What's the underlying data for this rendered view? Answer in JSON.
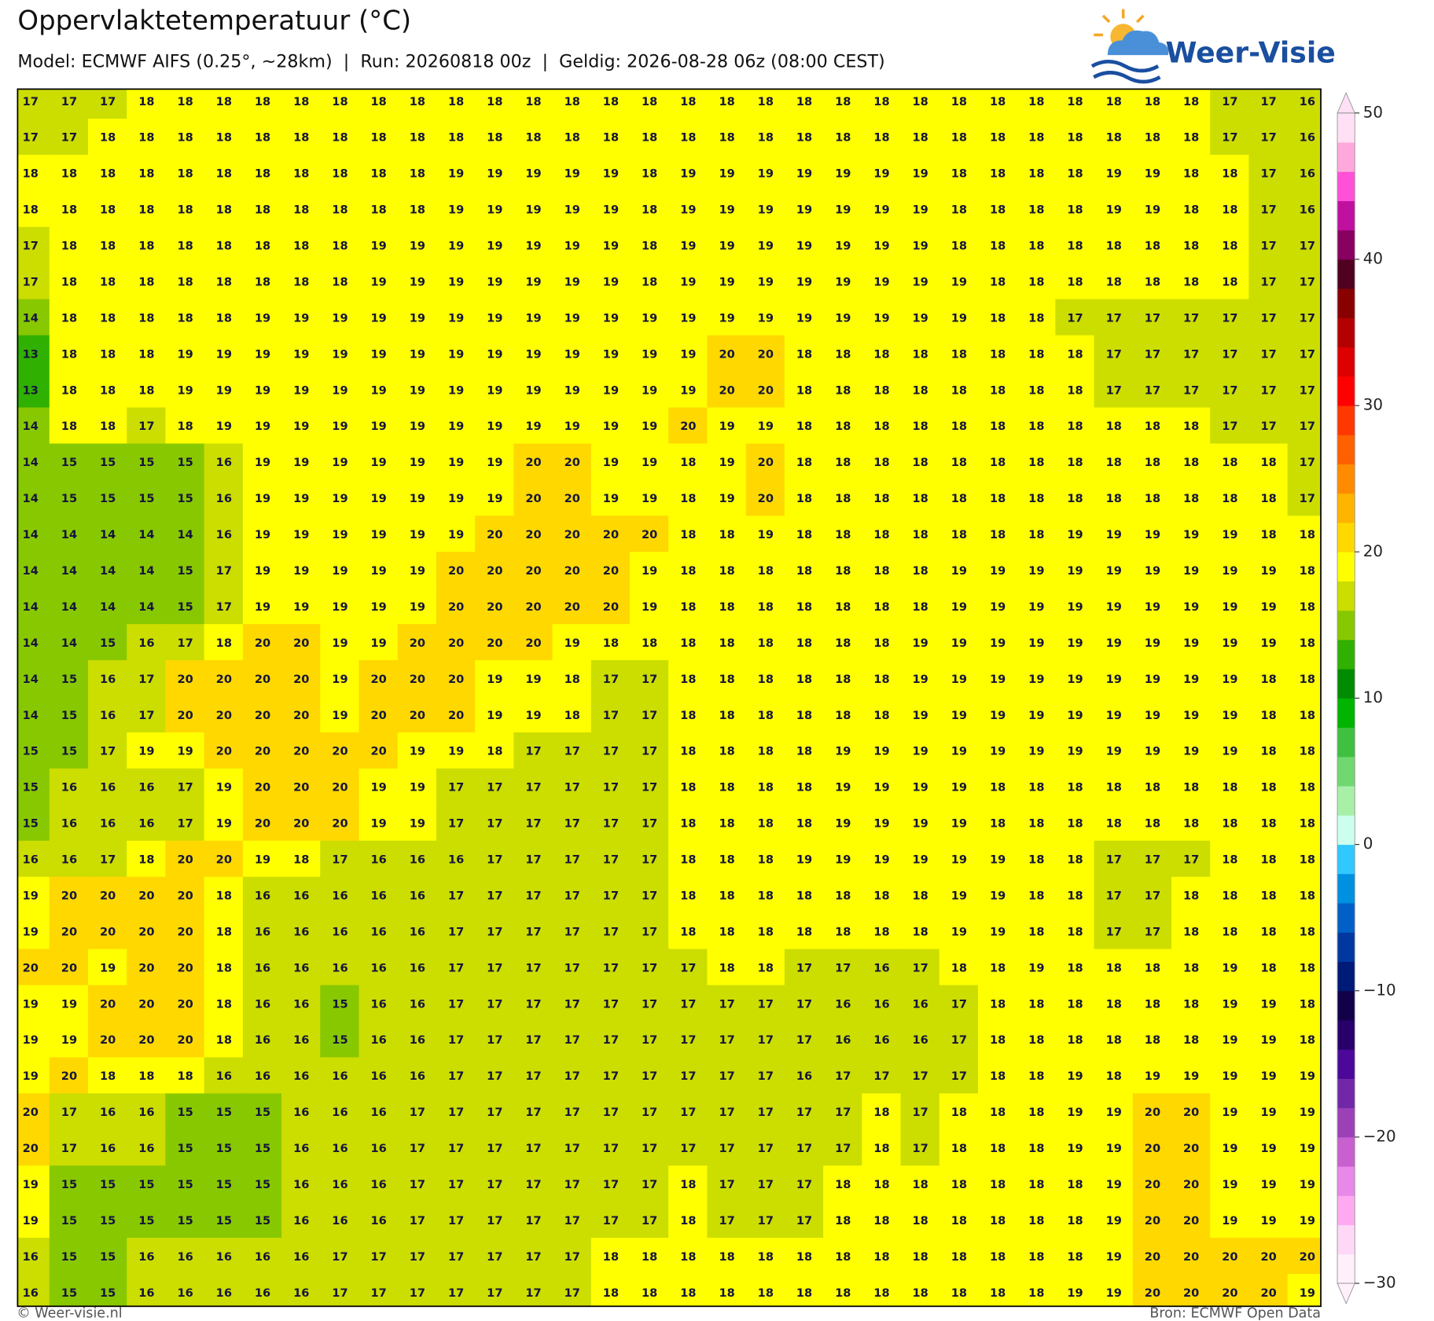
{
  "header": {
    "title": "Oppervlaktetemperatuur (°C)",
    "subtitle": "Model: ECMWF AIFS (0.25°, ~28km)  |  Run: 20260818 00z  |  Geldig: 2026-08-28 06z (08:00 CEST)"
  },
  "logo": {
    "text": "Weer-Visie"
  },
  "grid": {
    "values": [
      [
        17,
        17,
        17,
        18,
        18,
        18,
        18,
        18,
        18,
        18,
        18,
        18,
        18,
        18,
        18,
        18,
        18,
        18,
        18,
        18,
        18,
        18,
        18,
        18,
        18,
        18,
        18,
        18,
        18,
        18,
        18,
        17,
        17,
        16
      ],
      [
        17,
        17,
        18,
        18,
        18,
        18,
        18,
        18,
        18,
        18,
        18,
        18,
        18,
        18,
        18,
        18,
        18,
        18,
        18,
        18,
        18,
        18,
        18,
        18,
        18,
        18,
        18,
        18,
        18,
        18,
        18,
        17,
        17,
        16
      ],
      [
        18,
        18,
        18,
        18,
        18,
        18,
        18,
        18,
        18,
        18,
        18,
        19,
        19,
        19,
        19,
        19,
        18,
        19,
        19,
        19,
        19,
        19,
        19,
        19,
        18,
        18,
        18,
        18,
        19,
        19,
        18,
        18,
        17,
        16
      ],
      [
        18,
        18,
        18,
        18,
        18,
        18,
        18,
        18,
        18,
        18,
        18,
        19,
        19,
        19,
        19,
        19,
        18,
        19,
        19,
        19,
        19,
        19,
        19,
        19,
        18,
        18,
        18,
        18,
        19,
        19,
        18,
        18,
        17,
        16
      ],
      [
        17,
        18,
        18,
        18,
        18,
        18,
        18,
        18,
        18,
        19,
        19,
        19,
        19,
        19,
        19,
        19,
        18,
        19,
        19,
        19,
        19,
        19,
        19,
        19,
        18,
        18,
        18,
        18,
        18,
        18,
        18,
        18,
        17,
        17
      ],
      [
        17,
        18,
        18,
        18,
        18,
        18,
        18,
        18,
        18,
        19,
        19,
        19,
        19,
        19,
        19,
        19,
        18,
        19,
        19,
        19,
        19,
        19,
        19,
        19,
        19,
        18,
        18,
        18,
        18,
        18,
        18,
        18,
        17,
        17
      ],
      [
        14,
        18,
        18,
        18,
        18,
        18,
        19,
        19,
        19,
        19,
        19,
        19,
        19,
        19,
        19,
        19,
        19,
        19,
        19,
        19,
        19,
        19,
        19,
        19,
        19,
        18,
        18,
        17,
        17,
        17,
        17,
        17,
        17,
        17
      ],
      [
        13,
        18,
        18,
        18,
        19,
        19,
        19,
        19,
        19,
        19,
        19,
        19,
        19,
        19,
        19,
        19,
        19,
        19,
        20,
        20,
        18,
        18,
        18,
        18,
        18,
        18,
        18,
        18,
        17,
        17,
        17,
        17,
        17,
        17
      ],
      [
        13,
        18,
        18,
        18,
        19,
        19,
        19,
        19,
        19,
        19,
        19,
        19,
        19,
        19,
        19,
        19,
        19,
        19,
        20,
        20,
        18,
        18,
        18,
        18,
        18,
        18,
        18,
        18,
        17,
        17,
        17,
        17,
        17,
        17
      ],
      [
        14,
        18,
        18,
        17,
        18,
        19,
        19,
        19,
        19,
        19,
        19,
        19,
        19,
        19,
        19,
        19,
        19,
        20,
        19,
        19,
        18,
        18,
        18,
        18,
        18,
        18,
        18,
        18,
        18,
        18,
        18,
        17,
        17,
        17
      ],
      [
        14,
        15,
        15,
        15,
        15,
        16,
        19,
        19,
        19,
        19,
        19,
        19,
        19,
        20,
        20,
        19,
        19,
        18,
        19,
        20,
        18,
        18,
        18,
        18,
        18,
        18,
        18,
        18,
        18,
        18,
        18,
        18,
        18,
        17
      ],
      [
        14,
        15,
        15,
        15,
        15,
        16,
        19,
        19,
        19,
        19,
        19,
        19,
        19,
        20,
        20,
        19,
        19,
        18,
        19,
        20,
        18,
        18,
        18,
        18,
        18,
        18,
        18,
        18,
        18,
        18,
        18,
        18,
        18,
        17
      ],
      [
        14,
        14,
        14,
        14,
        14,
        16,
        19,
        19,
        19,
        19,
        19,
        19,
        20,
        20,
        20,
        20,
        20,
        18,
        18,
        19,
        18,
        18,
        18,
        18,
        18,
        18,
        18,
        19,
        19,
        19,
        19,
        19,
        18,
        18
      ],
      [
        14,
        14,
        14,
        14,
        15,
        17,
        19,
        19,
        19,
        19,
        19,
        20,
        20,
        20,
        20,
        20,
        19,
        18,
        18,
        18,
        18,
        18,
        18,
        18,
        19,
        19,
        19,
        19,
        19,
        19,
        19,
        19,
        19,
        18
      ],
      [
        14,
        14,
        14,
        14,
        15,
        17,
        19,
        19,
        19,
        19,
        19,
        20,
        20,
        20,
        20,
        20,
        19,
        18,
        18,
        18,
        18,
        18,
        18,
        18,
        19,
        19,
        19,
        19,
        19,
        19,
        19,
        19,
        19,
        18
      ],
      [
        14,
        14,
        15,
        16,
        17,
        18,
        20,
        20,
        19,
        19,
        20,
        20,
        20,
        20,
        19,
        18,
        18,
        18,
        18,
        18,
        18,
        18,
        18,
        19,
        19,
        19,
        19,
        19,
        19,
        19,
        19,
        19,
        19,
        18
      ],
      [
        14,
        15,
        16,
        17,
        20,
        20,
        20,
        20,
        19,
        20,
        20,
        20,
        19,
        19,
        18,
        17,
        17,
        18,
        18,
        18,
        18,
        18,
        18,
        19,
        19,
        19,
        19,
        19,
        19,
        19,
        19,
        19,
        18,
        18
      ],
      [
        14,
        15,
        16,
        17,
        20,
        20,
        20,
        20,
        19,
        20,
        20,
        20,
        19,
        19,
        18,
        17,
        17,
        18,
        18,
        18,
        18,
        18,
        18,
        19,
        19,
        19,
        19,
        19,
        19,
        19,
        19,
        19,
        18,
        18
      ],
      [
        15,
        15,
        17,
        19,
        19,
        20,
        20,
        20,
        20,
        20,
        19,
        19,
        18,
        17,
        17,
        17,
        17,
        18,
        18,
        18,
        18,
        19,
        19,
        19,
        19,
        19,
        19,
        19,
        19,
        19,
        19,
        19,
        18,
        18
      ],
      [
        15,
        16,
        16,
        16,
        17,
        19,
        20,
        20,
        20,
        19,
        19,
        17,
        17,
        17,
        17,
        17,
        17,
        18,
        18,
        18,
        18,
        19,
        19,
        19,
        19,
        18,
        18,
        18,
        18,
        18,
        18,
        18,
        18,
        18
      ],
      [
        15,
        16,
        16,
        16,
        17,
        19,
        20,
        20,
        20,
        19,
        19,
        17,
        17,
        17,
        17,
        17,
        17,
        18,
        18,
        18,
        18,
        19,
        19,
        19,
        19,
        18,
        18,
        18,
        18,
        18,
        18,
        18,
        18,
        18
      ],
      [
        16,
        16,
        17,
        18,
        20,
        20,
        19,
        18,
        17,
        16,
        16,
        16,
        17,
        17,
        17,
        17,
        17,
        18,
        18,
        18,
        19,
        19,
        19,
        19,
        19,
        19,
        18,
        18,
        17,
        17,
        17,
        18,
        18,
        18
      ],
      [
        19,
        20,
        20,
        20,
        20,
        18,
        16,
        16,
        16,
        16,
        16,
        17,
        17,
        17,
        17,
        17,
        17,
        18,
        18,
        18,
        18,
        18,
        18,
        18,
        19,
        19,
        18,
        18,
        17,
        17,
        18,
        18,
        18,
        18
      ],
      [
        19,
        20,
        20,
        20,
        20,
        18,
        16,
        16,
        16,
        16,
        16,
        17,
        17,
        17,
        17,
        17,
        17,
        18,
        18,
        18,
        18,
        18,
        18,
        18,
        19,
        19,
        18,
        18,
        17,
        17,
        18,
        18,
        18,
        18
      ],
      [
        20,
        20,
        19,
        20,
        20,
        18,
        16,
        16,
        16,
        16,
        16,
        17,
        17,
        17,
        17,
        17,
        17,
        17,
        18,
        18,
        17,
        17,
        16,
        17,
        18,
        18,
        19,
        18,
        18,
        18,
        18,
        19,
        18,
        18
      ],
      [
        19,
        19,
        20,
        20,
        20,
        18,
        16,
        16,
        15,
        16,
        16,
        17,
        17,
        17,
        17,
        17,
        17,
        17,
        17,
        17,
        17,
        16,
        16,
        16,
        17,
        18,
        18,
        18,
        18,
        18,
        18,
        19,
        19,
        18
      ],
      [
        19,
        19,
        20,
        20,
        20,
        18,
        16,
        16,
        15,
        16,
        16,
        17,
        17,
        17,
        17,
        17,
        17,
        17,
        17,
        17,
        17,
        16,
        16,
        16,
        17,
        18,
        18,
        18,
        18,
        18,
        18,
        19,
        19,
        18
      ],
      [
        19,
        20,
        18,
        18,
        18,
        16,
        16,
        16,
        16,
        16,
        16,
        17,
        17,
        17,
        17,
        17,
        17,
        17,
        17,
        17,
        16,
        17,
        17,
        17,
        17,
        18,
        18,
        19,
        18,
        19,
        19,
        19,
        19,
        19
      ],
      [
        20,
        17,
        16,
        16,
        15,
        15,
        15,
        16,
        16,
        16,
        17,
        17,
        17,
        17,
        17,
        17,
        17,
        17,
        17,
        17,
        17,
        17,
        18,
        17,
        18,
        18,
        18,
        19,
        19,
        20,
        20,
        19,
        19,
        19
      ],
      [
        20,
        17,
        16,
        16,
        15,
        15,
        15,
        16,
        16,
        16,
        17,
        17,
        17,
        17,
        17,
        17,
        17,
        17,
        17,
        17,
        17,
        17,
        18,
        17,
        18,
        18,
        18,
        19,
        19,
        20,
        20,
        19,
        19,
        19
      ],
      [
        19,
        15,
        15,
        15,
        15,
        15,
        15,
        16,
        16,
        16,
        17,
        17,
        17,
        17,
        17,
        17,
        17,
        18,
        17,
        17,
        17,
        18,
        18,
        18,
        18,
        18,
        18,
        18,
        19,
        20,
        20,
        19,
        19,
        19
      ],
      [
        19,
        15,
        15,
        15,
        15,
        15,
        15,
        16,
        16,
        16,
        17,
        17,
        17,
        17,
        17,
        17,
        17,
        18,
        17,
        17,
        17,
        18,
        18,
        18,
        18,
        18,
        18,
        18,
        19,
        20,
        20,
        19,
        19,
        19
      ],
      [
        16,
        15,
        15,
        16,
        16,
        16,
        16,
        16,
        17,
        17,
        17,
        17,
        17,
        17,
        17,
        18,
        18,
        18,
        18,
        18,
        18,
        18,
        18,
        18,
        18,
        18,
        18,
        18,
        19,
        20,
        20,
        20,
        20,
        20
      ],
      [
        16,
        15,
        15,
        16,
        16,
        16,
        16,
        16,
        17,
        17,
        17,
        17,
        17,
        17,
        17,
        18,
        18,
        18,
        18,
        18,
        18,
        18,
        18,
        18,
        18,
        18,
        18,
        19,
        19,
        20,
        20,
        20,
        20,
        19
      ]
    ]
  },
  "colorbar": {
    "lim": [
      -30,
      50
    ],
    "colors": [
      "#fff0fc",
      "#ffd8f8",
      "#ffaaf0",
      "#e888e8",
      "#c860d0",
      "#9c40b8",
      "#7028a8",
      "#4c0898",
      "#28006a",
      "#120048",
      "#001a78",
      "#0038a0",
      "#0060c8",
      "#0090e0",
      "#30c8ff",
      "#ccffee",
      "#a8f0a8",
      "#70d870",
      "#40c040",
      "#00b400",
      "#008c00",
      "#30b000",
      "#88c800",
      "#ccdd00",
      "#ffff00",
      "#ffd800",
      "#ffb400",
      "#ff8c00",
      "#ff6000",
      "#ff3800",
      "#ff0000",
      "#dd0000",
      "#b40000",
      "#880000",
      "#500020",
      "#880060",
      "#c010a0",
      "#ff50d8",
      "#ffa8dc",
      "#ffe0f4"
    ],
    "ticks": [
      50,
      40,
      30,
      20,
      10,
      0,
      {
        "value": -10,
        "label": "−10"
      },
      {
        "value": -20,
        "label": "−20"
      },
      {
        "value": -30,
        "label": "−30"
      }
    ]
  },
  "footer": {
    "left": "© Weer-visie.nl",
    "right": "Bron: ECMWF Open Data"
  }
}
